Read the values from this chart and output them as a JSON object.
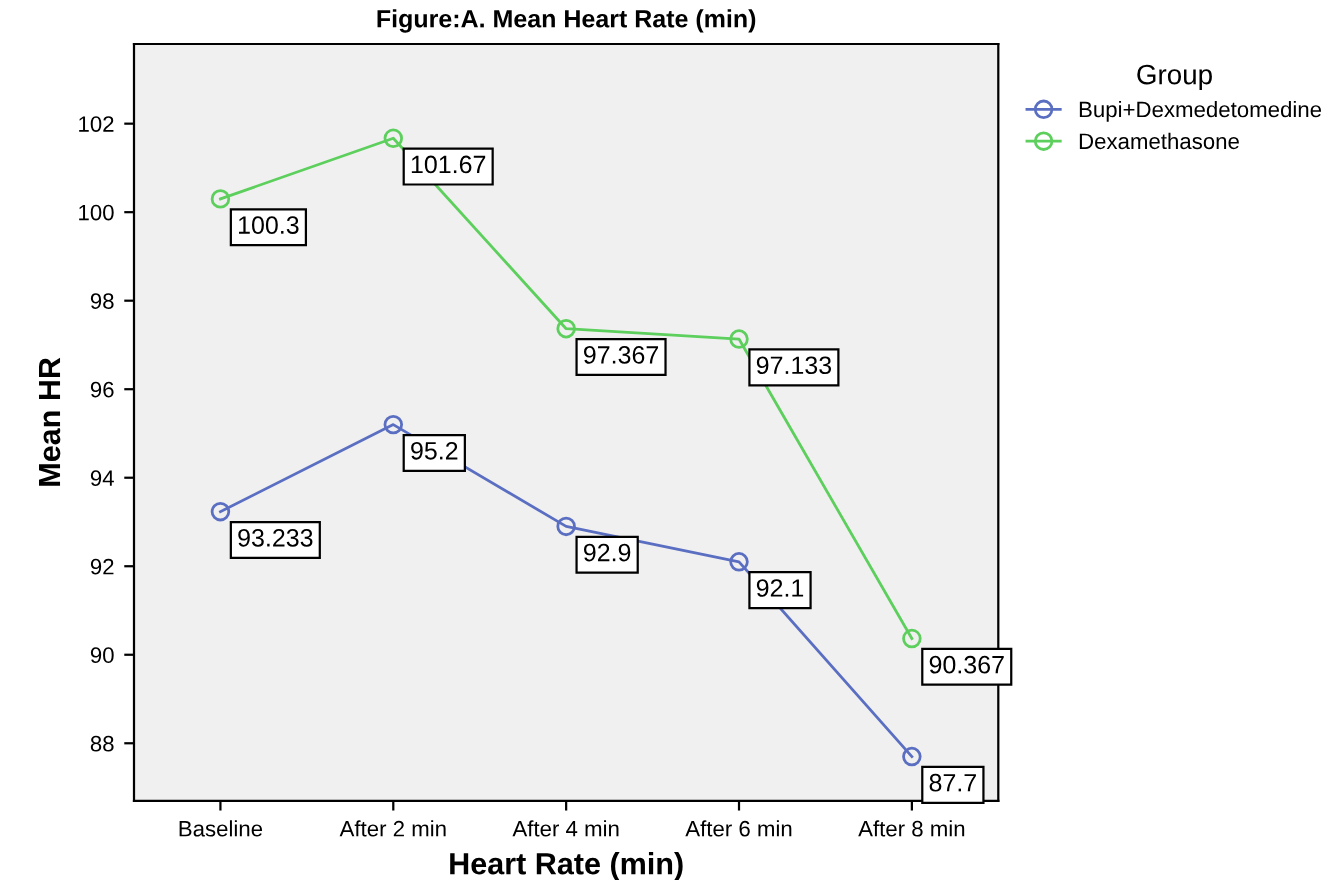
{
  "chart_data": {
    "type": "line",
    "title": "Figure:A. Mean Heart Rate (min)",
    "xlabel": "Heart Rate (min)",
    "ylabel": "Mean HR",
    "legend_title": "Group",
    "categories": [
      "Baseline",
      "After 2 min",
      "After 4 min",
      "After 6 min",
      "After 8 min"
    ],
    "series": [
      {
        "name": "Bupi+Dexmedetomedine",
        "color": "#5b6fc2",
        "values": [
          93.233,
          95.2,
          92.9,
          92.1,
          87.7
        ]
      },
      {
        "name": "Dexamethasone",
        "color": "#5ccf5c",
        "values": [
          100.3,
          101.67,
          97.367,
          97.133,
          90.367
        ]
      }
    ],
    "ylim": [
      86.7,
      103.8
    ],
    "yticks": [
      88,
      90,
      92,
      94,
      96,
      98,
      100,
      102
    ],
    "data_labels": true,
    "legend": "top right",
    "marker": "circle",
    "grid": false
  }
}
